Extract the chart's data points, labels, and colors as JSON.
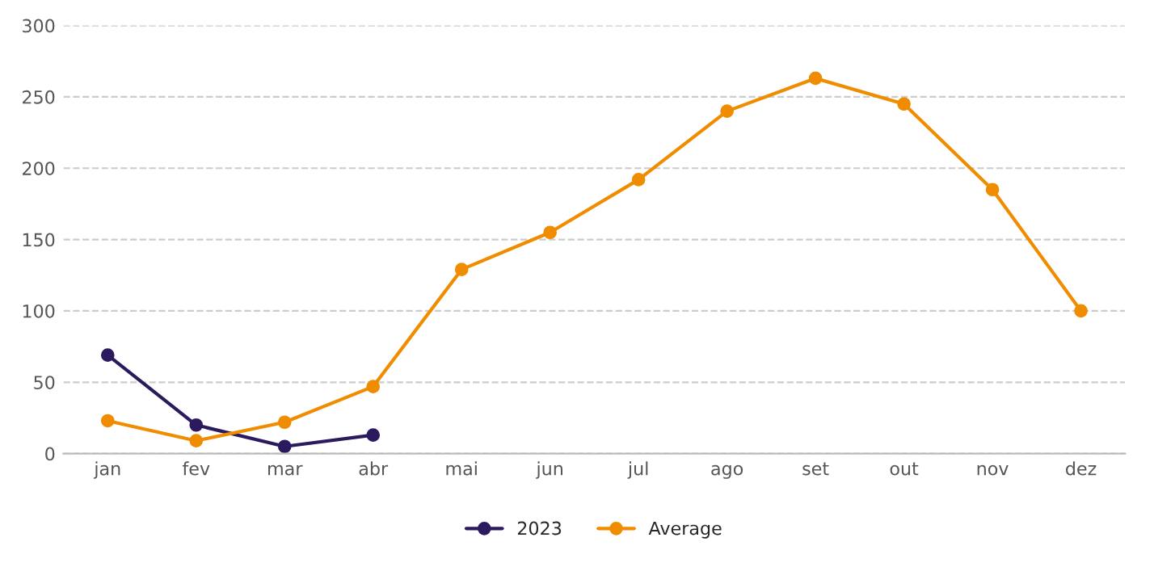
{
  "chart_data": {
    "type": "line",
    "categories": [
      "jan",
      "fev",
      "mar",
      "abr",
      "mai",
      "jun",
      "jul",
      "ago",
      "set",
      "out",
      "nov",
      "dez"
    ],
    "series": [
      {
        "name": "2023",
        "color": "#2b1a5e",
        "values": [
          69,
          20,
          5,
          13,
          null,
          null,
          null,
          null,
          null,
          null,
          null,
          null
        ]
      },
      {
        "name": "Average",
        "color": "#f08c00",
        "values": [
          23,
          9,
          22,
          47,
          129,
          155,
          192,
          240,
          263,
          245,
          185,
          100
        ]
      }
    ],
    "ylim": [
      0,
      300
    ],
    "yticks": [
      0,
      50,
      100,
      150,
      200,
      250,
      300
    ],
    "grid": "y",
    "legend": "bottom",
    "marker": "circle",
    "line_style": "solid"
  }
}
